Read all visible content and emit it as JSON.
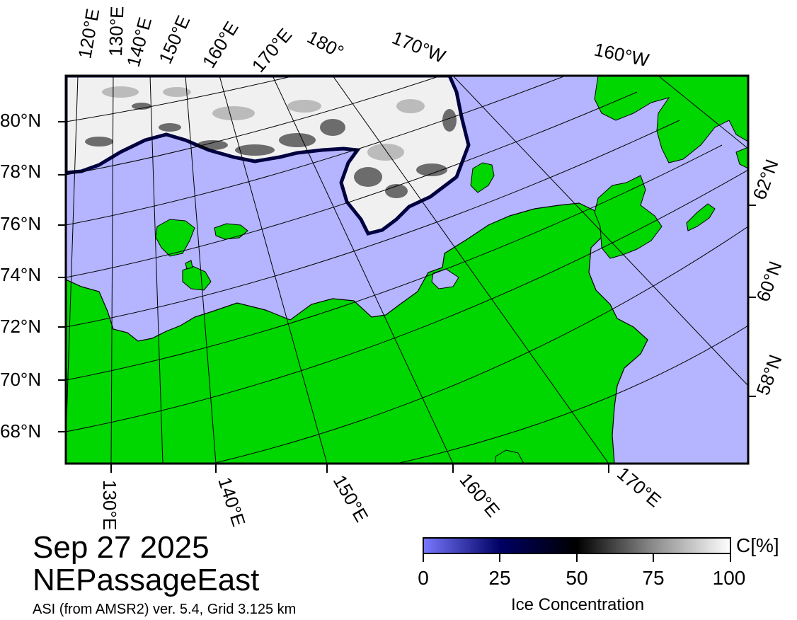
{
  "map": {
    "date": "Sep 27 2025",
    "region": "NEPassageEast",
    "source_note": "ASI (from AMSR2) ver. 5.4,  Grid 3.125 km",
    "colors": {
      "land": "#00d600",
      "open_water": "#b4b4ff",
      "ice_high": "#ffffff",
      "ice_mid": "#000000",
      "ice_low": "#000050",
      "frame": "#000000",
      "graticule": "#000000"
    },
    "longitude_labels_top": [
      "120°E",
      "130°E",
      "140°E",
      "150°E",
      "160°E",
      "170°E",
      "180°",
      "170°W",
      "160°W"
    ],
    "longitude_labels_bottom": [
      "130°E",
      "140°E",
      "150°E",
      "160°E",
      "170°E"
    ],
    "latitude_labels_left": [
      "80°N",
      "78°N",
      "76°N",
      "74°N",
      "72°N",
      "70°N",
      "68°N"
    ],
    "latitude_labels_right": [
      "62°N",
      "60°N",
      "58°N"
    ]
  },
  "colorbar": {
    "title": "Ice Concentration",
    "unit": "C[%]",
    "ticks": [
      "0",
      "25",
      "50",
      "75",
      "100"
    ],
    "range": [
      0,
      100
    ],
    "stops": [
      {
        "value": 0,
        "color": "#7878ff"
      },
      {
        "value": 25,
        "color": "#000064"
      },
      {
        "value": 50,
        "color": "#000000"
      },
      {
        "value": 75,
        "color": "#8c8c8c"
      },
      {
        "value": 100,
        "color": "#ffffff"
      }
    ]
  }
}
